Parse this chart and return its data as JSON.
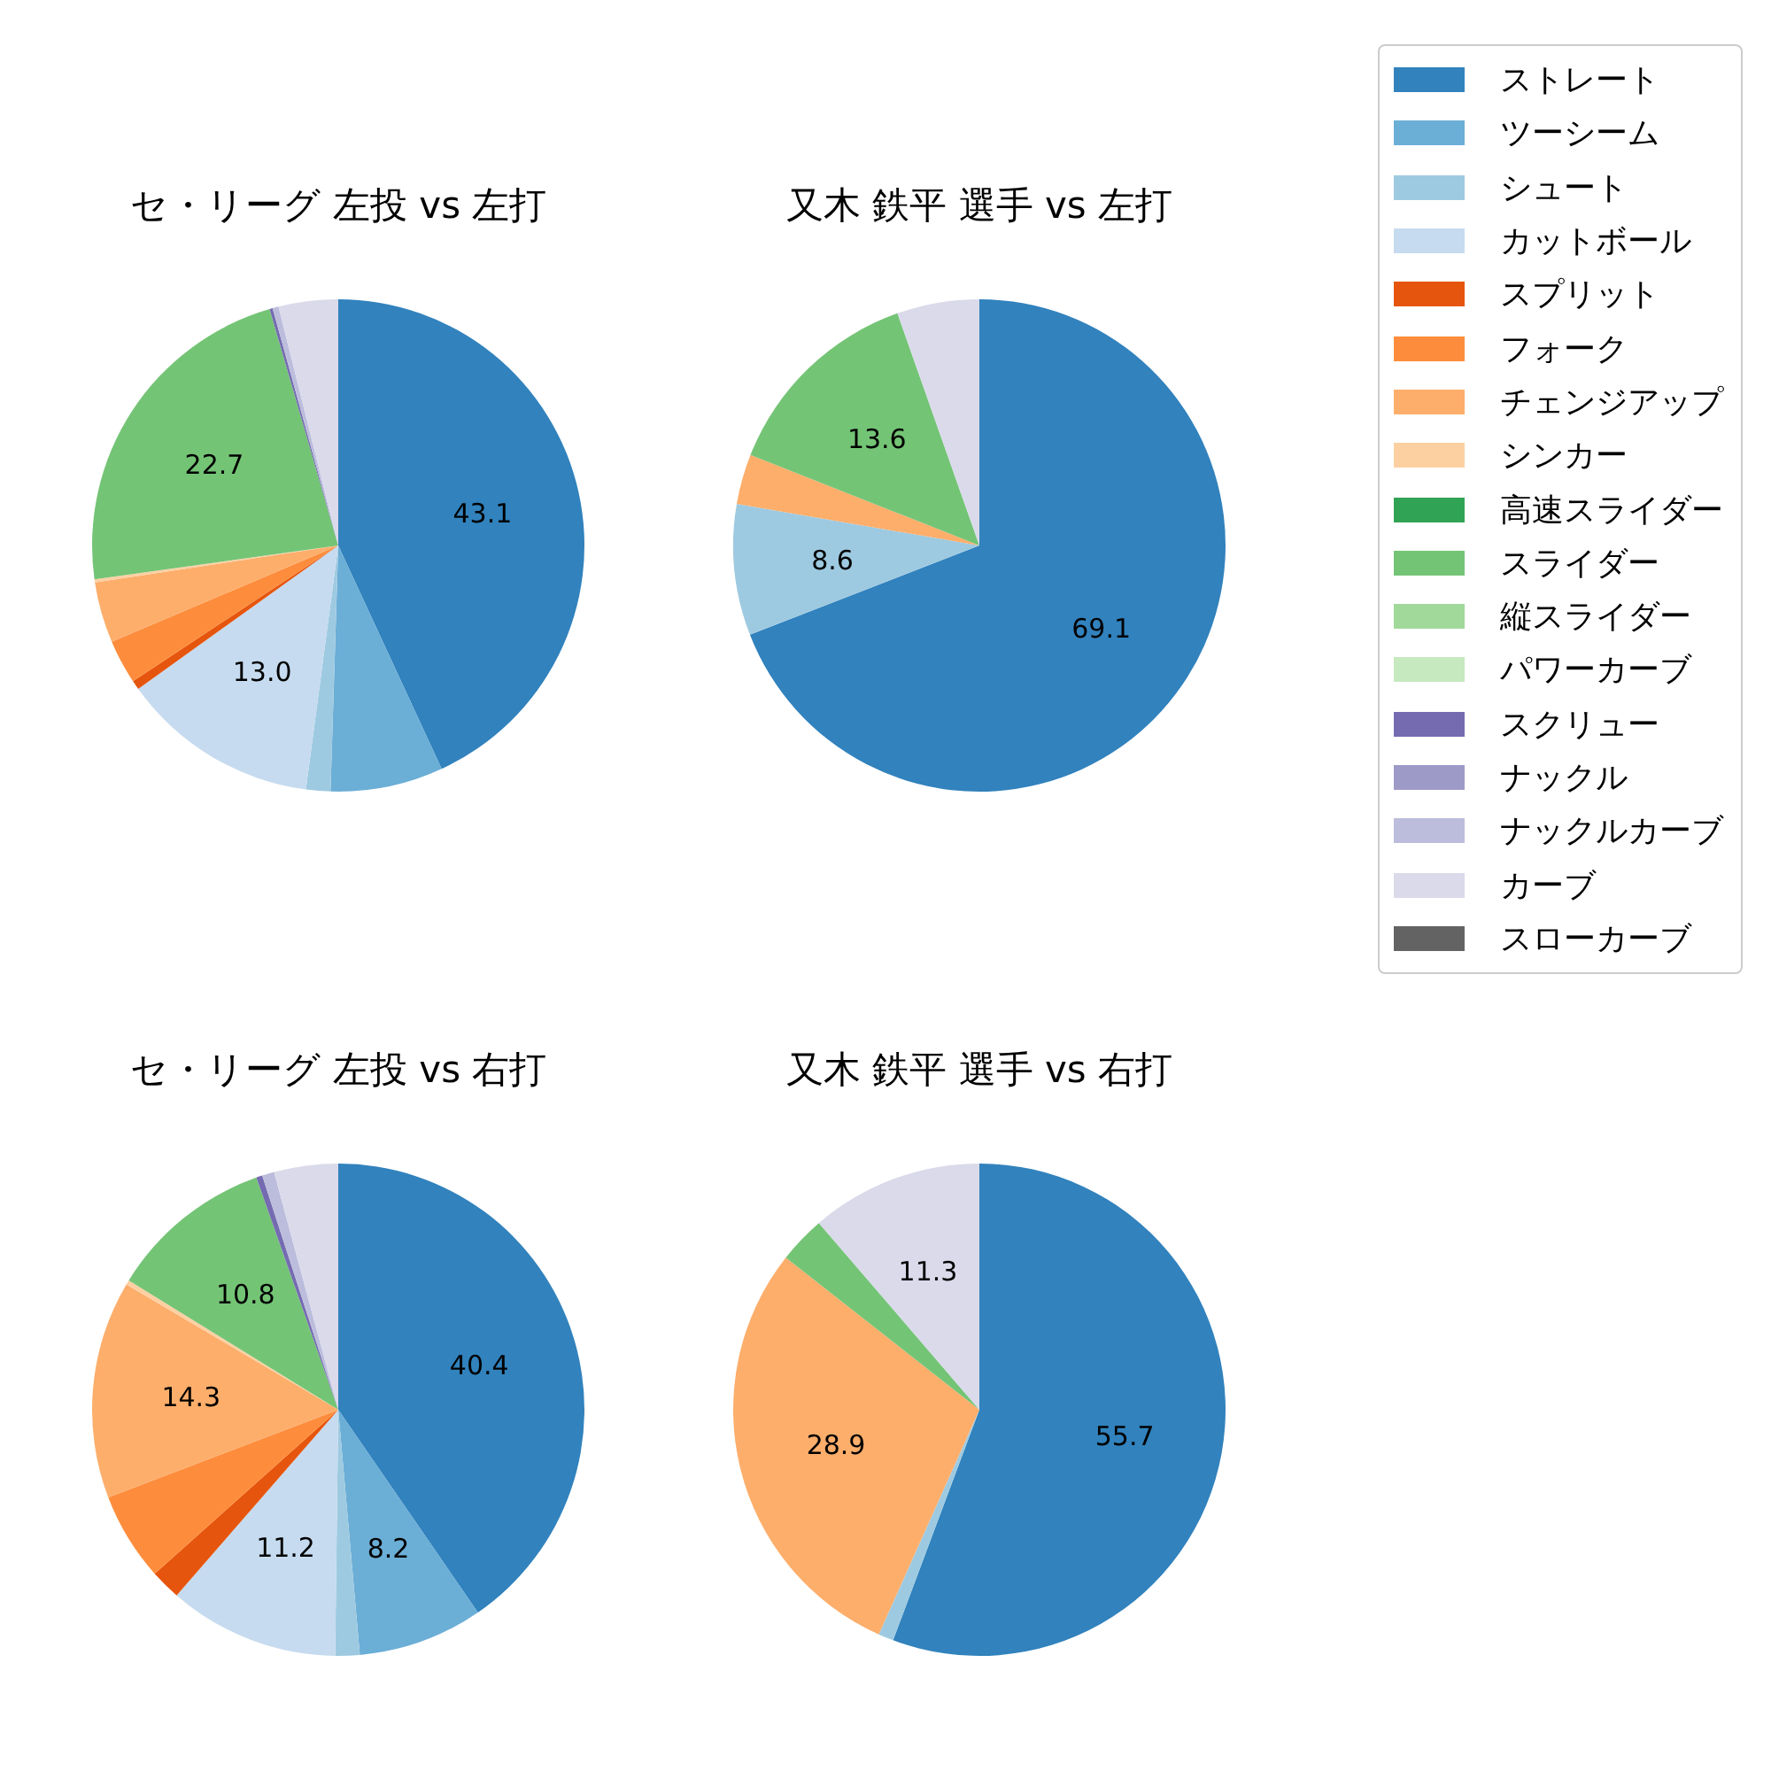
{
  "chart_data": [
    {
      "type": "pie",
      "title": "セ・リーグ 左投 vs 左打",
      "legend": "right",
      "categories": [
        "ストレート",
        "ツーシーム",
        "シュート",
        "カットボール",
        "スプリット",
        "フォーク",
        "チェンジアップ",
        "シンカー",
        "高速スライダー",
        "スライダー",
        "縦スライダー",
        "パワーカーブ",
        "スクリュー",
        "ナックル",
        "ナックルカーブ",
        "カーブ",
        "スローカーブ"
      ],
      "values": [
        43.1,
        7.4,
        1.6,
        13.0,
        0.6,
        2.9,
        4.0,
        0.2,
        0,
        22.7,
        0,
        0,
        0.2,
        0,
        0.4,
        3.9,
        0
      ],
      "value_labels": [
        "43.1",
        null,
        null,
        "13.0",
        null,
        null,
        null,
        null,
        null,
        "22.7",
        null,
        null,
        null,
        null,
        null,
        null,
        null
      ],
      "colors": [
        "#3182bd",
        "#6baed6",
        "#9ecae1",
        "#c6dbef",
        "#e6550d",
        "#fd8d3c",
        "#fdae6b",
        "#fdd0a2",
        "#31a354",
        "#74c476",
        "#a1d99b",
        "#c7e9c0",
        "#756bb1",
        "#9e9ac8",
        "#bcbddc",
        "#dadaeb",
        "#636363"
      ]
    },
    {
      "type": "pie",
      "title": "又木 鉄平 選手 vs 左打",
      "categories": [
        null,
        null,
        null,
        null,
        null,
        null,
        null,
        null,
        null,
        null,
        null,
        null,
        null,
        null,
        null,
        null,
        null
      ],
      "values": [
        69.1,
        0,
        8.6,
        0,
        0,
        0,
        3.3,
        0,
        0,
        13.6,
        0,
        0,
        0,
        0,
        0,
        5.4,
        0
      ],
      "value_labels": [
        "69.1",
        null,
        "8.6",
        null,
        null,
        null,
        null,
        null,
        null,
        "13.6",
        null,
        null,
        null,
        null,
        null,
        null,
        null
      ],
      "colors": [
        "#3182bd",
        "#6baed6",
        "#9ecae1",
        "#c6dbef",
        "#e6550d",
        "#fd8d3c",
        "#fdae6b",
        "#fdd0a2",
        "#31a354",
        "#74c476",
        "#a1d99b",
        "#c7e9c0",
        "#756bb1",
        "#9e9ac8",
        "#bcbddc",
        "#dadaeb",
        "#636363"
      ]
    },
    {
      "type": "pie",
      "title": "セ・リーグ 左投 vs 右打",
      "categories": [
        null,
        null,
        null,
        null,
        null,
        null,
        null,
        null,
        null,
        null,
        null,
        null,
        null,
        null,
        null,
        null,
        null
      ],
      "values": [
        40.4,
        8.2,
        1.6,
        11.2,
        2.0,
        5.8,
        14.3,
        0.3,
        0,
        10.8,
        0,
        0,
        0.4,
        0,
        0.8,
        4.2,
        0
      ],
      "value_labels": [
        "40.4",
        "8.2",
        null,
        "11.2",
        null,
        null,
        "14.3",
        null,
        null,
        "10.8",
        null,
        null,
        null,
        null,
        null,
        null,
        null
      ],
      "colors": [
        "#3182bd",
        "#6baed6",
        "#9ecae1",
        "#c6dbef",
        "#e6550d",
        "#fd8d3c",
        "#fdae6b",
        "#fdd0a2",
        "#31a354",
        "#74c476",
        "#a1d99b",
        "#c7e9c0",
        "#756bb1",
        "#9e9ac8",
        "#bcbddc",
        "#dadaeb",
        "#636363"
      ]
    },
    {
      "type": "pie",
      "title": "又木 鉄平 選手 vs 右打",
      "categories": [
        null,
        null,
        null,
        null,
        null,
        null,
        null,
        null,
        null,
        null,
        null,
        null,
        null,
        null,
        null,
        null,
        null
      ],
      "values": [
        55.7,
        0,
        1.0,
        0,
        0,
        0,
        28.9,
        0,
        0,
        3.1,
        0,
        0,
        0,
        0,
        0,
        11.3,
        0
      ],
      "value_labels": [
        "55.7",
        null,
        null,
        null,
        null,
        null,
        "28.9",
        null,
        null,
        null,
        null,
        null,
        null,
        null,
        null,
        "11.3",
        null
      ],
      "colors": [
        "#3182bd",
        "#6baed6",
        "#9ecae1",
        "#c6dbef",
        "#e6550d",
        "#fd8d3c",
        "#fdae6b",
        "#fdd0a2",
        "#31a354",
        "#74c476",
        "#a1d99b",
        "#c7e9c0",
        "#756bb1",
        "#9e9ac8",
        "#bcbddc",
        "#dadaeb",
        "#636363"
      ]
    }
  ]
}
